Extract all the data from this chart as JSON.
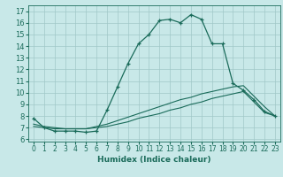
{
  "xlabel": "Humidex (Indice chaleur)",
  "xlim": [
    -0.5,
    23.5
  ],
  "ylim": [
    5.8,
    17.5
  ],
  "xticks": [
    0,
    1,
    2,
    3,
    4,
    5,
    6,
    7,
    8,
    9,
    10,
    11,
    12,
    13,
    14,
    15,
    16,
    17,
    18,
    19,
    20,
    21,
    22,
    23
  ],
  "yticks": [
    6,
    7,
    8,
    9,
    10,
    11,
    12,
    13,
    14,
    15,
    16,
    17
  ],
  "bg_color": "#c8e8e8",
  "line_color": "#1a6b5a",
  "grid_color": "#a0c8c8",
  "line1_x": [
    0,
    1,
    2,
    3,
    4,
    5,
    6,
    7,
    8,
    9,
    10,
    11,
    12,
    13,
    14,
    15,
    16,
    17,
    18,
    19,
    20,
    21,
    22,
    23
  ],
  "line1_y": [
    7.8,
    7.0,
    6.7,
    6.7,
    6.7,
    6.6,
    6.7,
    8.5,
    10.5,
    12.5,
    14.2,
    15.0,
    16.2,
    16.3,
    16.0,
    16.7,
    16.3,
    14.2,
    14.2,
    10.8,
    10.2,
    9.4,
    8.4,
    8.0
  ],
  "line2_x": [
    0,
    1,
    2,
    3,
    4,
    5,
    6,
    7,
    8,
    9,
    10,
    11,
    12,
    13,
    14,
    15,
    16,
    17,
    18,
    19,
    20,
    21,
    22,
    23
  ],
  "line2_y": [
    7.1,
    7.0,
    6.9,
    6.9,
    6.9,
    6.9,
    7.0,
    7.1,
    7.3,
    7.5,
    7.8,
    8.0,
    8.2,
    8.5,
    8.7,
    9.0,
    9.2,
    9.5,
    9.7,
    9.9,
    10.1,
    9.2,
    8.3,
    8.0
  ],
  "line3_x": [
    0,
    1,
    2,
    3,
    4,
    5,
    6,
    7,
    8,
    9,
    10,
    11,
    12,
    13,
    14,
    15,
    16,
    17,
    18,
    19,
    20,
    21,
    22,
    23
  ],
  "line3_y": [
    7.3,
    7.1,
    7.0,
    6.9,
    6.9,
    6.9,
    7.1,
    7.3,
    7.6,
    7.9,
    8.2,
    8.5,
    8.8,
    9.1,
    9.4,
    9.6,
    9.9,
    10.1,
    10.3,
    10.5,
    10.6,
    9.7,
    8.8,
    8.0
  ],
  "fontsize_label": 6.5,
  "fontsize_tick": 5.5
}
